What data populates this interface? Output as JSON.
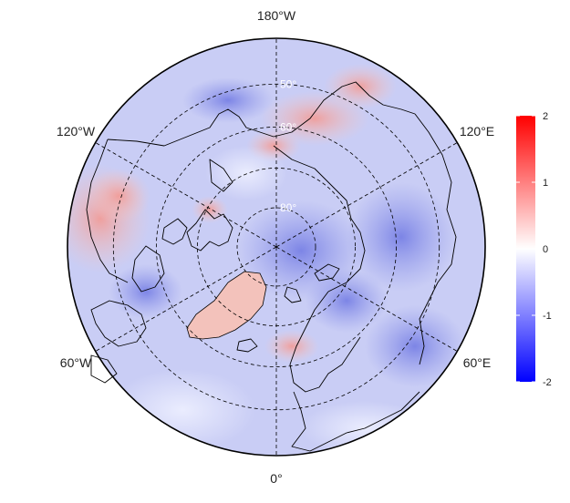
{
  "map": {
    "projection": "north-polar-stereographic",
    "outer_latitude": 40,
    "longitude_labels": [
      {
        "text": "180°W",
        "lon": 180
      },
      {
        "text": "120°W",
        "lon": -120
      },
      {
        "text": "120°E",
        "lon": 120
      },
      {
        "text": "60°W",
        "lon": -60
      },
      {
        "text": "60°E",
        "lon": 60
      },
      {
        "text": "0°",
        "lon": 0
      }
    ],
    "latitude_labels": [
      {
        "text": "50°",
        "lat": 50
      },
      {
        "text": "60°",
        "lat": 60
      },
      {
        "text": "80°",
        "lat": 80
      }
    ],
    "latitude_circles": [
      50,
      60,
      70,
      80
    ],
    "meridians": [
      0,
      60,
      120,
      180,
      240,
      300
    ],
    "grid_style": "dashed"
  },
  "colorbar": {
    "min": -2,
    "max": 2,
    "ticks": [
      2,
      1,
      0,
      -1,
      -2
    ],
    "tick_labels": [
      "2",
      "1",
      "0",
      "-1",
      "-2"
    ],
    "colors": {
      "low": "#0000ff",
      "mid": "#ffffff",
      "high": "#ff0000"
    }
  },
  "colors": {
    "field_base": "#c9cdf5",
    "warm_anomaly": "#f6c8c4",
    "cool_anomaly": "#8d94ea",
    "coastline": "#000000",
    "grid": "#000000"
  }
}
